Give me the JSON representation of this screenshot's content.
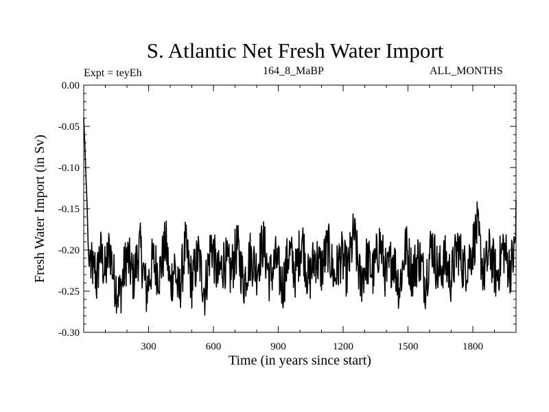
{
  "chart_data": {
    "type": "line",
    "title": "S. Atlantic Net Fresh Water Import",
    "annotations": {
      "left": "Expt = teyEh",
      "center": "164_8_MaBP",
      "right": "ALL_MONTHS"
    },
    "xlabel": "Time (in years since start)",
    "ylabel": "Fresh Water Import (in Sv)",
    "xlim": [
      0,
      2000
    ],
    "ylim": [
      -0.3,
      0.0
    ],
    "x_ticks": [
      300,
      600,
      900,
      1200,
      1500,
      1800
    ],
    "x_tick_labels": [
      "300",
      "600",
      "900",
      "1200",
      "1500",
      "1800"
    ],
    "y_ticks": [
      0.0,
      -0.05,
      -0.1,
      -0.15,
      -0.2,
      -0.25,
      -0.3
    ],
    "y_tick_labels": [
      "0.00",
      "-0.05",
      "-0.10",
      "-0.15",
      "-0.20",
      "-0.25",
      "-0.30"
    ],
    "grid": false,
    "series": [
      {
        "name": "Fresh Water Import",
        "color": "#000000",
        "description": "noisy annual series; spikes to about -0.04 at the start, then fluctuates around -0.215 between roughly -0.29 and -0.14",
        "x": [
          0,
          5,
          10,
          15,
          20,
          25,
          30,
          35,
          40,
          45,
          50,
          60,
          75,
          100,
          120,
          140,
          165,
          200,
          230,
          260,
          290,
          320,
          350,
          380,
          400,
          420,
          440,
          470,
          500,
          530,
          560,
          590,
          620,
          650,
          680,
          710,
          740,
          770,
          800,
          830,
          860,
          890,
          920,
          950,
          980,
          1010,
          1040,
          1070,
          1100,
          1130,
          1160,
          1190,
          1220,
          1250,
          1280,
          1310,
          1340,
          1370,
          1400,
          1430,
          1460,
          1490,
          1520,
          1550,
          1580,
          1610,
          1640,
          1670,
          1700,
          1730,
          1760,
          1790,
          1820,
          1850,
          1880,
          1910,
          1940,
          1970,
          1990,
          2000
        ],
        "y": [
          -0.04,
          -0.07,
          -0.11,
          -0.14,
          -0.19,
          -0.22,
          -0.2,
          -0.24,
          -0.21,
          -0.25,
          -0.22,
          -0.26,
          -0.19,
          -0.24,
          -0.18,
          -0.25,
          -0.29,
          -0.2,
          -0.25,
          -0.18,
          -0.28,
          -0.21,
          -0.24,
          -0.17,
          -0.27,
          -0.22,
          -0.29,
          -0.18,
          -0.26,
          -0.2,
          -0.28,
          -0.17,
          -0.25,
          -0.21,
          -0.24,
          -0.18,
          -0.26,
          -0.2,
          -0.23,
          -0.17,
          -0.25,
          -0.21,
          -0.27,
          -0.19,
          -0.24,
          -0.16,
          -0.26,
          -0.2,
          -0.23,
          -0.18,
          -0.25,
          -0.2,
          -0.24,
          -0.15,
          -0.26,
          -0.21,
          -0.24,
          -0.17,
          -0.25,
          -0.2,
          -0.27,
          -0.18,
          -0.24,
          -0.2,
          -0.26,
          -0.17,
          -0.24,
          -0.21,
          -0.25,
          -0.18,
          -0.23,
          -0.2,
          -0.14,
          -0.24,
          -0.19,
          -0.25,
          -0.18,
          -0.23,
          -0.2,
          -0.14
        ]
      }
    ]
  }
}
